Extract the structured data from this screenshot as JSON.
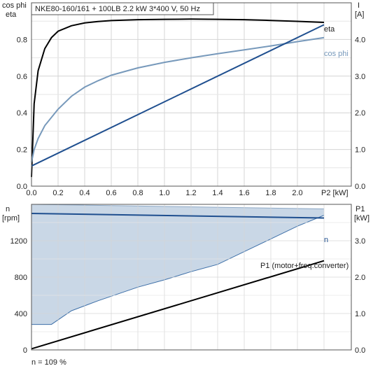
{
  "chart_data": [
    {
      "type": "line",
      "title": "NKE80-160/161 + 100LB   2.2 kW   3*400 V, 50 Hz",
      "ylabel_left": [
        "cos phi",
        "eta"
      ],
      "ylabel_right": [
        "I",
        "[A]"
      ],
      "xlabel": "P2 [kW]",
      "xlim": [
        0,
        2.2
      ],
      "ylim_left": [
        0,
        1.0
      ],
      "ylim_right": [
        0,
        5.0
      ],
      "x_ticks": [
        "0.0",
        "0.2",
        "0.4",
        "0.6",
        "0.8",
        "1.0",
        "1.2",
        "1.4",
        "1.6",
        "1.8",
        "2.0"
      ],
      "y_left_ticks": [
        "0.0",
        "0.2",
        "0.4",
        "0.6",
        "0.8"
      ],
      "y_right_ticks": [
        "0.0",
        "1.0",
        "2.0",
        "3.0",
        "4.0"
      ],
      "grid": true,
      "series": [
        {
          "name": "eta",
          "axis": "left",
          "color": "#000000",
          "x": [
            0.0,
            0.02,
            0.05,
            0.1,
            0.15,
            0.2,
            0.3,
            0.4,
            0.5,
            0.6,
            0.8,
            1.0,
            1.2,
            1.4,
            1.6,
            1.8,
            2.0,
            2.2
          ],
          "y": [
            0.05,
            0.45,
            0.63,
            0.75,
            0.81,
            0.845,
            0.875,
            0.89,
            0.898,
            0.903,
            0.908,
            0.91,
            0.911,
            0.91,
            0.908,
            0.904,
            0.899,
            0.893
          ]
        },
        {
          "name": "cos phi",
          "axis": "left",
          "color": "#7799bb",
          "x": [
            0.0,
            0.02,
            0.05,
            0.1,
            0.2,
            0.3,
            0.4,
            0.5,
            0.6,
            0.8,
            1.0,
            1.2,
            1.4,
            1.6,
            1.8,
            2.0,
            2.2
          ],
          "y": [
            0.13,
            0.2,
            0.26,
            0.33,
            0.42,
            0.49,
            0.54,
            0.575,
            0.605,
            0.645,
            0.675,
            0.7,
            0.722,
            0.743,
            0.765,
            0.788,
            0.81
          ]
        },
        {
          "name": "",
          "axis": "right",
          "color": "#1f4f8f",
          "x": [
            0.0,
            2.2
          ],
          "y": [
            0.55,
            4.4
          ]
        }
      ],
      "annotations": [
        "eta",
        "cos phi"
      ]
    },
    {
      "type": "area",
      "ylabel_left": [
        "n",
        "[rpm]"
      ],
      "ylabel_right": [
        "P1",
        "[kW]"
      ],
      "xlim": [
        0,
        2.2
      ],
      "ylim_left": [
        0,
        1600
      ],
      "ylim_right": [
        0,
        4.0
      ],
      "y_left_ticks": [
        "0",
        "400",
        "800",
        "1200"
      ],
      "y_right_ticks": [
        "0.0",
        "1.0",
        "2.0",
        "3.0"
      ],
      "grid": true,
      "band": {
        "color": "#c9d7e6",
        "upper": {
          "x": [
            0.0,
            2.2
          ],
          "y": [
            1600,
            1550
          ]
        },
        "lower": {
          "x": [
            0.0,
            0.15,
            0.3,
            0.5,
            0.8,
            1.0,
            1.2,
            1.4,
            1.6,
            1.8,
            2.0,
            2.2
          ],
          "y": [
            280,
            280,
            430,
            540,
            690,
            770,
            860,
            940,
            1080,
            1220,
            1360,
            1480
          ]
        }
      },
      "series": [
        {
          "name": "n",
          "axis": "left",
          "color": "#1f4f8f",
          "x": [
            0.0,
            2.2
          ],
          "y": [
            1500,
            1450
          ]
        },
        {
          "name": "P1 (motor+freq.converter)",
          "axis": "right",
          "color": "#000000",
          "x": [
            0.0,
            2.2
          ],
          "y": [
            0.03,
            2.45
          ]
        }
      ],
      "annotations": [
        "n",
        "P1 (motor+freq.converter)"
      ],
      "footnote": "n = 109 %"
    }
  ]
}
